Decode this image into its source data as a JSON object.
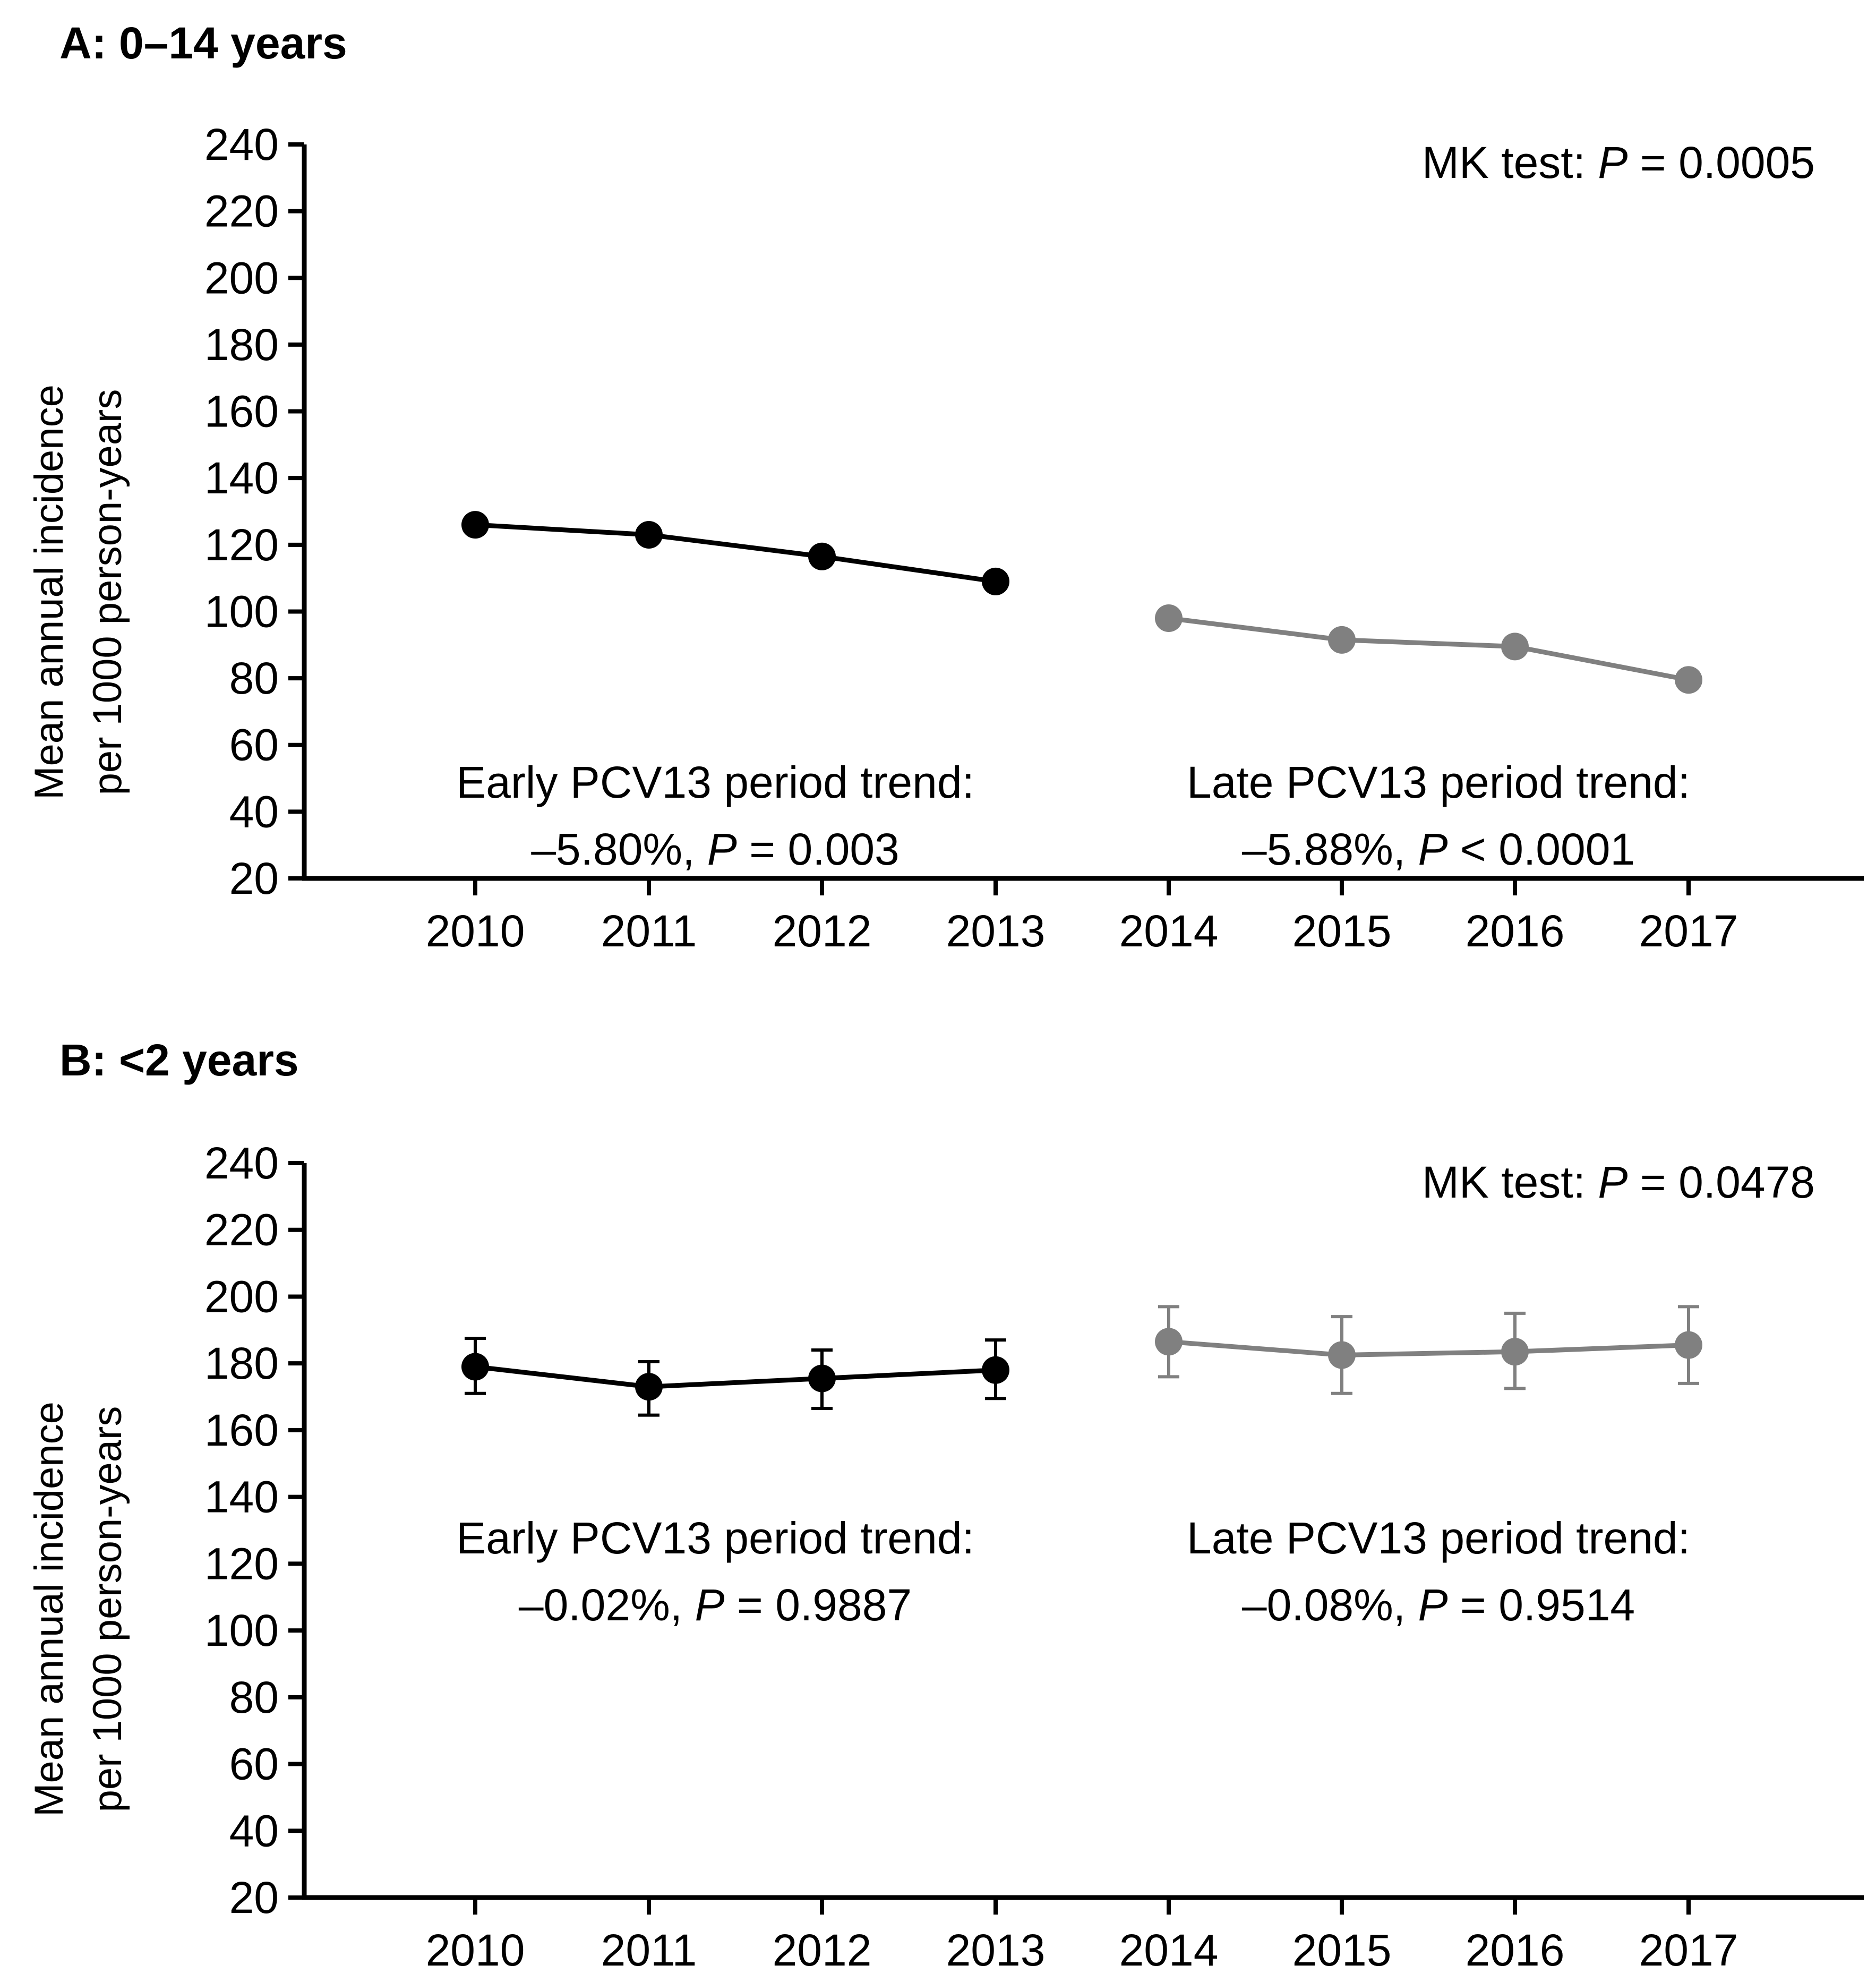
{
  "colors": {
    "early": "#000000",
    "late": "#808080"
  },
  "chart_data": [
    {
      "type": "line",
      "title": "A: 0–14 years",
      "ylabel_line1": "Mean annual incidence",
      "ylabel_line2": "per 1000 person-years",
      "xlabel": "",
      "ylim": [
        20,
        240
      ],
      "yticks": [
        20,
        40,
        60,
        80,
        100,
        120,
        140,
        160,
        180,
        200,
        220,
        240
      ],
      "categories": [
        "2010",
        "2011",
        "2012",
        "2013",
        "2014",
        "2015",
        "2016",
        "2017"
      ],
      "series": [
        {
          "name": "Early PCV13 period",
          "color": "#000000",
          "x": [
            "2010",
            "2011",
            "2012",
            "2013"
          ],
          "values": [
            126,
            123,
            116.5,
            109
          ]
        },
        {
          "name": "Late PCV13 period",
          "color": "#808080",
          "x": [
            "2014",
            "2015",
            "2016",
            "2017"
          ],
          "values": [
            98,
            91.5,
            89.5,
            79.5
          ]
        }
      ],
      "annotations": {
        "mk": {
          "prefix": "MK test: ",
          "p": "P",
          "suffix": " = 0.0005"
        },
        "early": {
          "line1": "Early PCV13 period trend:",
          "pct": "–5.80%, ",
          "p": "P",
          "suffix": " = 0.003"
        },
        "late": {
          "line1": "Late PCV13 period trend:",
          "pct": "–5.88%, ",
          "p": "P",
          "suffix": " < 0.0001"
        }
      }
    },
    {
      "type": "line",
      "title": "B: <2 years",
      "ylabel_line1": "Mean annual incidence",
      "ylabel_line2": "per 1000 person-years",
      "xlabel": "",
      "ylim": [
        20,
        240
      ],
      "yticks": [
        20,
        40,
        60,
        80,
        100,
        120,
        140,
        160,
        180,
        200,
        220,
        240
      ],
      "categories": [
        "2010",
        "2011",
        "2012",
        "2013",
        "2014",
        "2015",
        "2016",
        "2017"
      ],
      "series": [
        {
          "name": "Early PCV13 period",
          "color": "#000000",
          "x": [
            "2010",
            "2011",
            "2012",
            "2013"
          ],
          "values": [
            179,
            173,
            175.5,
            178
          ],
          "err_low": [
            171,
            164.5,
            166.5,
            169.5
          ],
          "err_high": [
            187.5,
            180.5,
            184,
            187
          ]
        },
        {
          "name": "Late PCV13 period",
          "color": "#808080",
          "x": [
            "2014",
            "2015",
            "2016",
            "2017"
          ],
          "values": [
            186.5,
            182.5,
            183.5,
            185.5
          ],
          "err_low": [
            176,
            171,
            172.5,
            174
          ],
          "err_high": [
            197,
            194,
            195,
            197
          ]
        }
      ],
      "annotations": {
        "mk": {
          "prefix": "MK test: ",
          "p": "P",
          "suffix": " = 0.0478"
        },
        "early": {
          "line1": "Early PCV13 period trend:",
          "pct": "–0.02%, ",
          "p": "P",
          "suffix": " = 0.9887"
        },
        "late": {
          "line1": "Late PCV13 period trend:",
          "pct": "–0.08%, ",
          "p": "P",
          "suffix": " = 0.9514"
        }
      }
    }
  ]
}
